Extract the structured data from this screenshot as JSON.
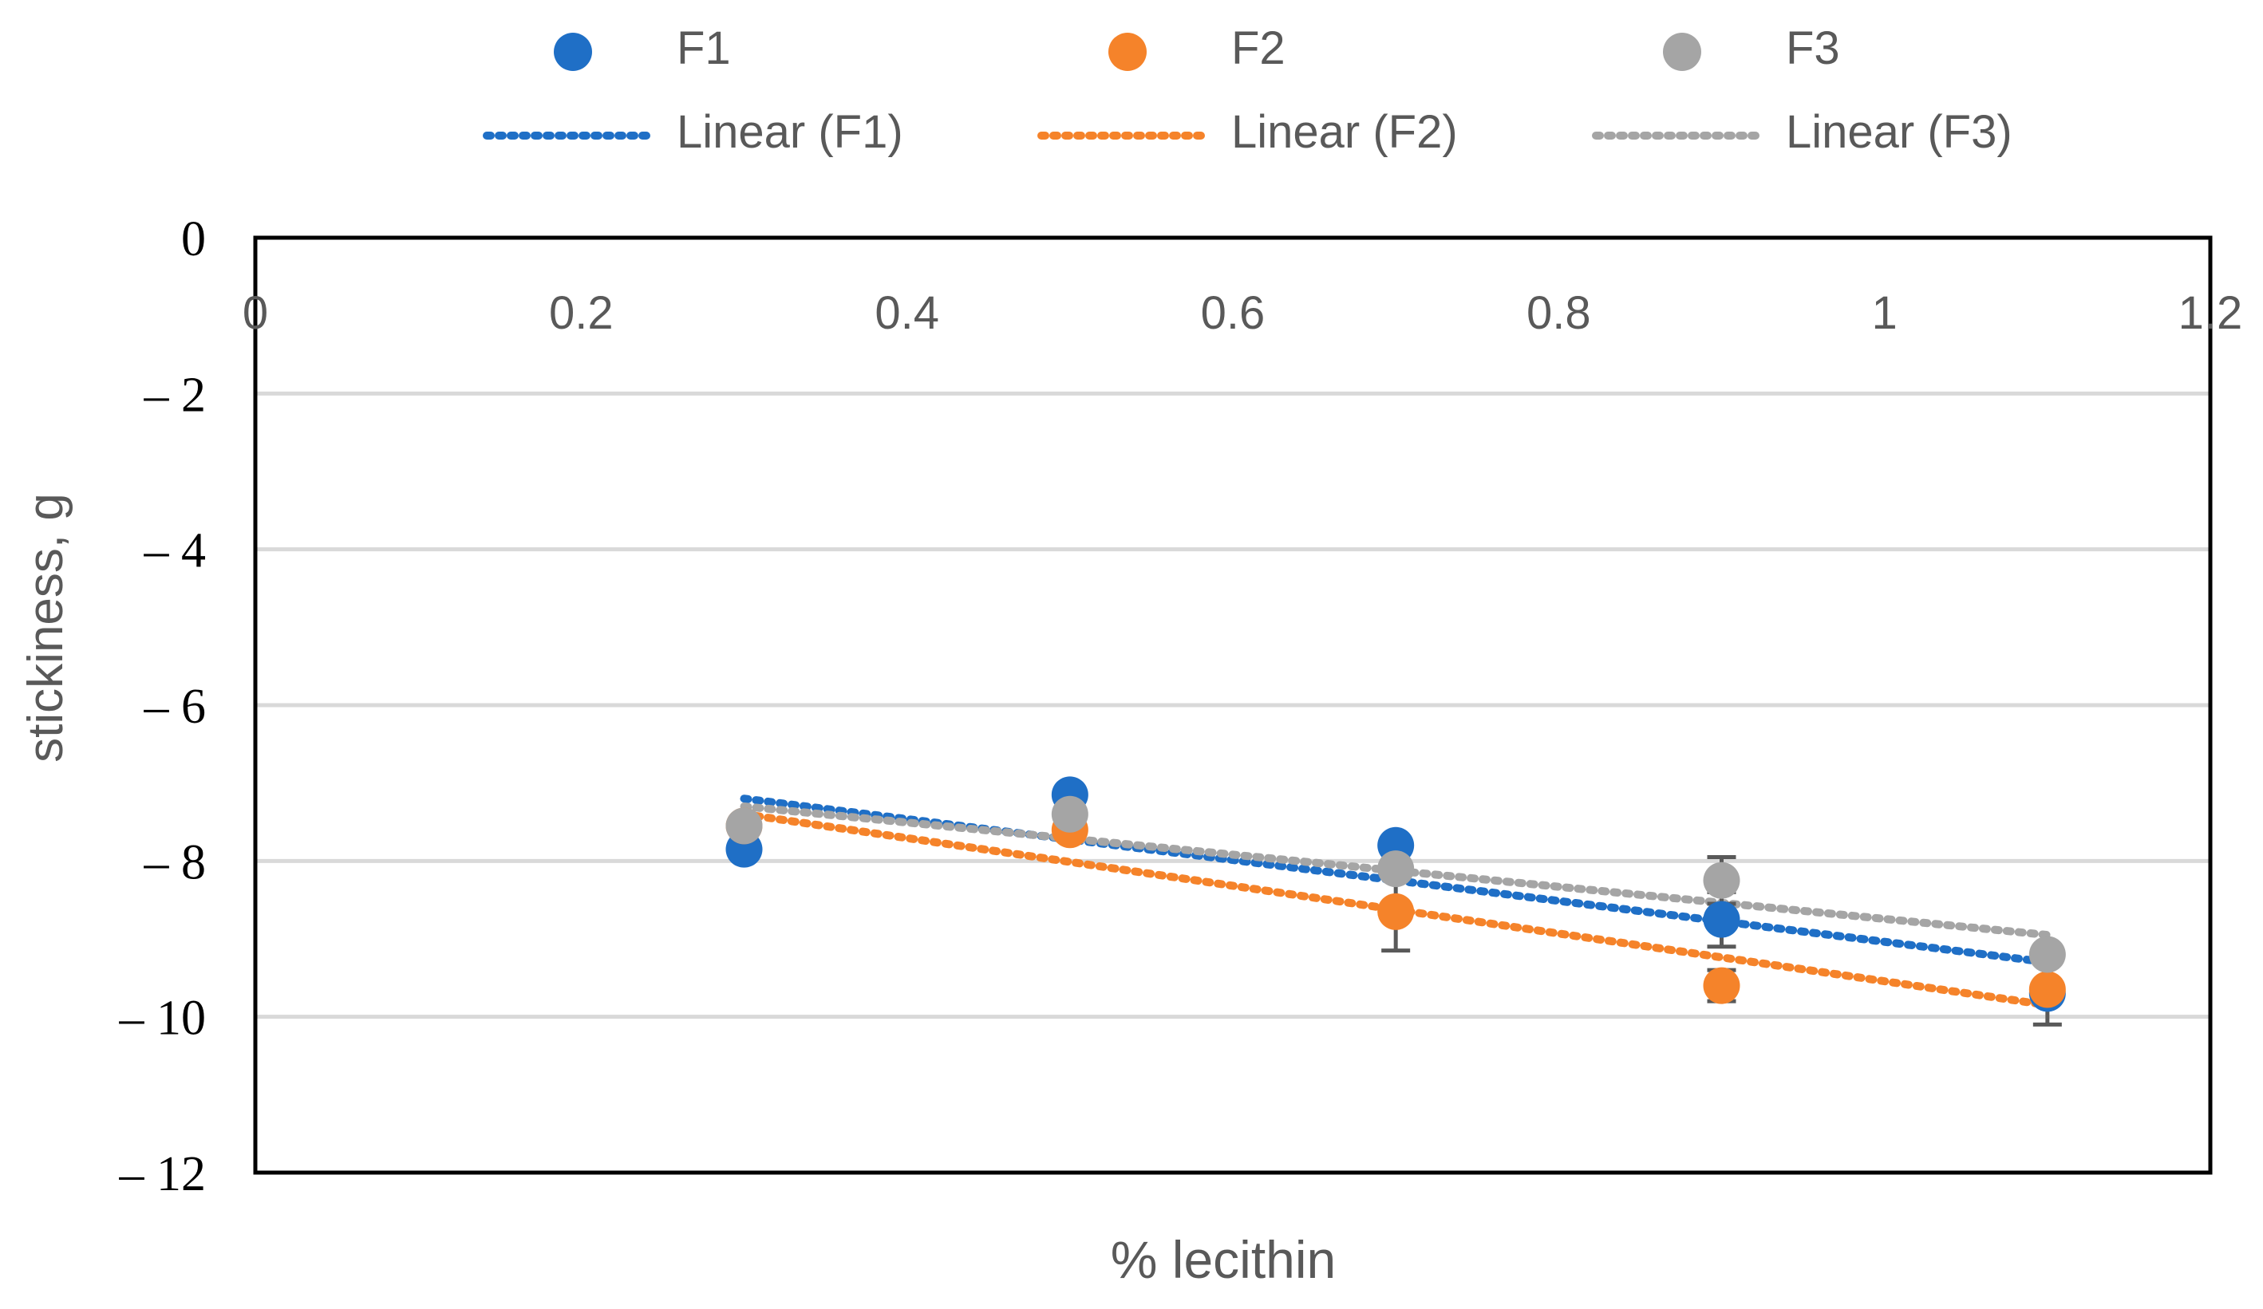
{
  "chart_data": {
    "type": "scatter",
    "title": "",
    "xlabel": "% lecithin",
    "ylabel": "stickiness, g",
    "xlim": [
      0,
      1.2
    ],
    "ylim": [
      -12,
      0
    ],
    "x_ticks": [
      0,
      0.2,
      0.4,
      0.6,
      0.8,
      1,
      1.2
    ],
    "x_tick_labels": [
      "0",
      "0.2",
      "0.4",
      "0.6",
      "0.8",
      "1",
      "1.2"
    ],
    "y_ticks": [
      0,
      -2,
      -4,
      -6,
      -8,
      -10,
      -12
    ],
    "y_tick_labels": [
      "0",
      "– 2",
      "– 4",
      "– 6",
      "– 8",
      "– 10",
      "– 12"
    ],
    "grid": "horizontal",
    "legend_position": "top",
    "x_axis_position": "top",
    "series": [
      {
        "name": "F1",
        "trend_name": "Linear (F1)",
        "color": "#1F6FC6",
        "x": [
          0.3,
          0.5,
          0.7,
          0.9,
          1.1
        ],
        "y": [
          -7.85,
          -7.15,
          -7.8,
          -8.75,
          -9.7
        ],
        "error": [
          0.0,
          0.0,
          0.0,
          0.35,
          0.4
        ],
        "trend": {
          "x0": 0.3,
          "y0": -7.2,
          "x1": 1.1,
          "y1": -9.3
        }
      },
      {
        "name": "F2",
        "trend_name": "Linear (F2)",
        "color": "#F5832A",
        "x": [
          0.3,
          0.5,
          0.7,
          0.9,
          1.1
        ],
        "y": [
          -7.55,
          -7.6,
          -8.65,
          -9.6,
          -9.65
        ],
        "error": [
          0.0,
          0.0,
          0.5,
          0.2,
          0.0
        ],
        "trend": {
          "x0": 0.3,
          "y0": -7.4,
          "x1": 1.1,
          "y1": -9.85
        }
      },
      {
        "name": "F3",
        "trend_name": "Linear (F3)",
        "color": "#A5A5A5",
        "x": [
          0.3,
          0.5,
          0.7,
          0.9,
          1.1
        ],
        "y": [
          -7.55,
          -7.4,
          -8.1,
          -8.25,
          -9.2
        ],
        "error": [
          0.0,
          0.0,
          0.0,
          0.3,
          0.0
        ],
        "trend": {
          "x0": 0.3,
          "y0": -7.3,
          "x1": 1.1,
          "y1": -8.95
        }
      }
    ]
  },
  "colors": {
    "axis": "#000000",
    "grid": "#D9D9D9",
    "error_bar": "#595959",
    "tick_label": "#595959",
    "axis_label": "#595959"
  }
}
